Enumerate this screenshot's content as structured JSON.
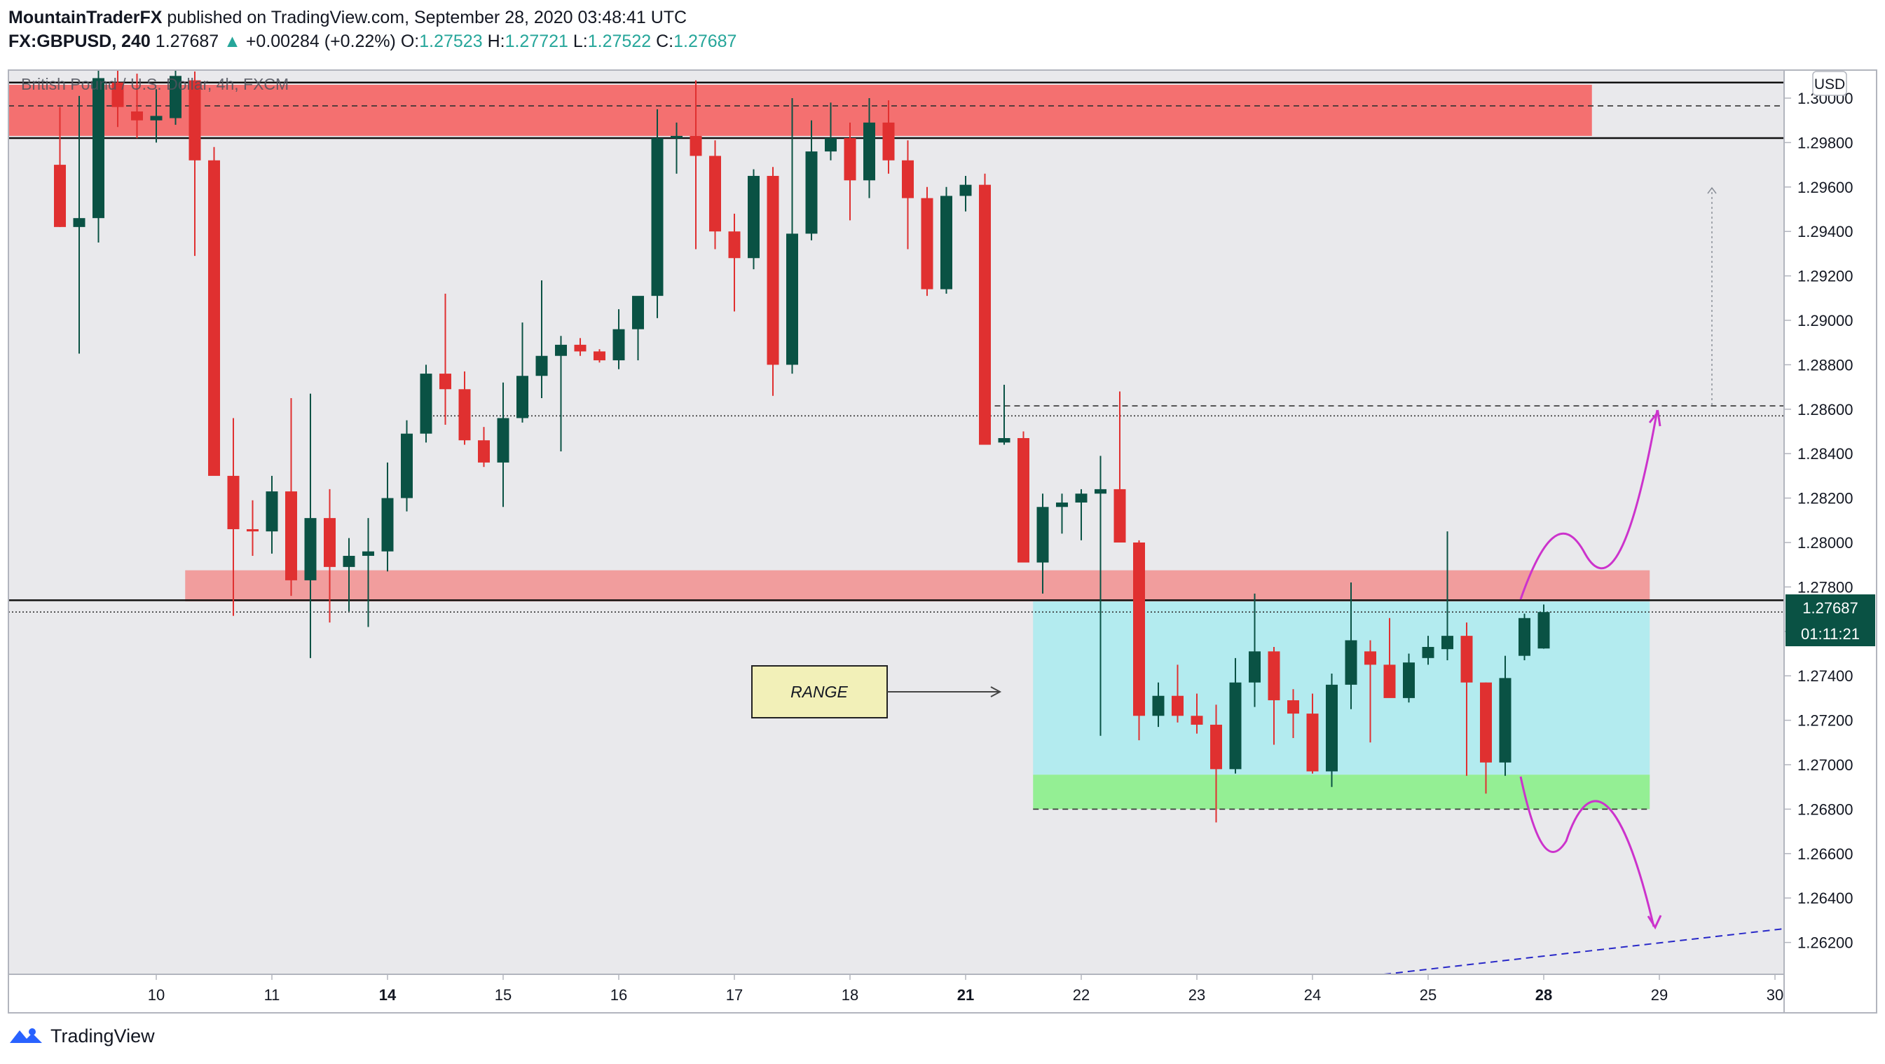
{
  "header": {
    "author": "MountainTraderFX",
    "published_text": "published on TradingView.com, September 28, 2020 03:48:41 UTC",
    "symbol": "FX:GBPUSD, 240",
    "last_price": "1.27687",
    "change_arrow": "▲",
    "change": "+0.00284 (+0.22%)",
    "o_label": "O:",
    "o_value": "1.27523",
    "h_label": "H:",
    "h_value": "1.27721",
    "l_label": "L:",
    "l_value": "1.27522",
    "c_label": "C:",
    "c_value": "1.27687"
  },
  "colors": {
    "bull": "#0a5244",
    "bear": "#e03030",
    "supply_zone": "#f47070",
    "support_zone": "#f19d9d",
    "range_box": "#b3ebef",
    "demand_zone": "#94ef94",
    "projection": "#cc33cc",
    "trendline": "#2828c8",
    "background": "#e9e9ec"
  },
  "chart_data": {
    "type": "candlestick",
    "title": "British Pound / U.S. Dollar, 4h, FXCM",
    "currency": "USD",
    "ylim": [
      1.2603,
      1.3022
    ],
    "y_ticks": [
      "1.30000",
      "1.29800",
      "1.29600",
      "1.29400",
      "1.29200",
      "1.29000",
      "1.28800",
      "1.28600",
      "1.28400",
      "1.28200",
      "1.28000",
      "1.27800",
      "1.27600",
      "1.27400",
      "1.27200",
      "1.27000",
      "1.26800",
      "1.26600",
      "1.26400",
      "1.26200"
    ],
    "x_ticks": [
      "10",
      "11",
      "14",
      "15",
      "16",
      "17",
      "18",
      "21",
      "22",
      "23",
      "24",
      "25",
      "28",
      "29",
      "30"
    ],
    "bold_x_ticks": [
      "14",
      "21",
      "28"
    ],
    "x_tick_index": [
      2.0,
      8.0,
      14.0,
      20.0,
      26.0,
      32.0,
      38.0,
      44.0,
      50.0,
      56.0,
      62.0,
      68.0,
      74.0,
      80.0,
      86.0
    ],
    "candles": [
      {
        "i": -3.0,
        "o": 1.297,
        "h": 1.2996,
        "l": 1.2942,
        "c": 1.2942
      },
      {
        "i": -2.0,
        "o": 1.2942,
        "h": 1.3001,
        "l": 1.2885,
        "c": 1.2946
      },
      {
        "i": -1.0,
        "o": 1.2946,
        "h": 1.3018,
        "l": 1.2935,
        "c": 1.3009
      },
      {
        "i": 0.0,
        "o": 1.3007,
        "h": 1.3014,
        "l": 1.2987,
        "c": 1.2996
      },
      {
        "i": 1.0,
        "o": 1.2994,
        "h": 1.3011,
        "l": 1.2982,
        "c": 1.299
      },
      {
        "i": 2.0,
        "o": 1.299,
        "h": 1.3004,
        "l": 1.298,
        "c": 1.2992
      },
      {
        "i": 3.0,
        "o": 1.2991,
        "h": 1.3016,
        "l": 1.2988,
        "c": 1.301
      },
      {
        "i": 4.0,
        "o": 1.3008,
        "h": 1.3012,
        "l": 1.2929,
        "c": 1.2972
      },
      {
        "i": 5.0,
        "o": 1.2972,
        "h": 1.2978,
        "l": 1.2832,
        "c": 1.283
      },
      {
        "i": 6.0,
        "o": 1.283,
        "h": 1.2856,
        "l": 1.2767,
        "c": 1.2806
      },
      {
        "i": 7.0,
        "o": 1.2806,
        "h": 1.2819,
        "l": 1.2794,
        "c": 1.2805
      },
      {
        "i": 8.0,
        "o": 1.2805,
        "h": 1.283,
        "l": 1.2795,
        "c": 1.2823
      },
      {
        "i": 9.0,
        "o": 1.2823,
        "h": 1.2865,
        "l": 1.2776,
        "c": 1.2783
      },
      {
        "i": 10.0,
        "o": 1.2783,
        "h": 1.2867,
        "l": 1.2748,
        "c": 1.2811
      },
      {
        "i": 11.0,
        "o": 1.2811,
        "h": 1.2824,
        "l": 1.2764,
        "c": 1.2789
      },
      {
        "i": 12.0,
        "o": 1.2789,
        "h": 1.2802,
        "l": 1.2769,
        "c": 1.2794
      },
      {
        "i": 13.0,
        "o": 1.2794,
        "h": 1.2811,
        "l": 1.2762,
        "c": 1.2796
      },
      {
        "i": 14.0,
        "o": 1.2796,
        "h": 1.2836,
        "l": 1.2787,
        "c": 1.282
      },
      {
        "i": 15.0,
        "o": 1.282,
        "h": 1.2855,
        "l": 1.2814,
        "c": 1.2849
      },
      {
        "i": 16.0,
        "o": 1.2849,
        "h": 1.288,
        "l": 1.2845,
        "c": 1.2876
      },
      {
        "i": 17.0,
        "o": 1.2876,
        "h": 1.2912,
        "l": 1.2853,
        "c": 1.2869
      },
      {
        "i": 18.0,
        "o": 1.2869,
        "h": 1.2877,
        "l": 1.2844,
        "c": 1.2846
      },
      {
        "i": 19.0,
        "o": 1.2846,
        "h": 1.2852,
        "l": 1.2834,
        "c": 1.2836
      },
      {
        "i": 20.0,
        "o": 1.2836,
        "h": 1.2872,
        "l": 1.2816,
        "c": 1.2856
      },
      {
        "i": 21.0,
        "o": 1.2856,
        "h": 1.2899,
        "l": 1.2854,
        "c": 1.2875
      },
      {
        "i": 22.0,
        "o": 1.2875,
        "h": 1.2918,
        "l": 1.2865,
        "c": 1.2884
      },
      {
        "i": 23.0,
        "o": 1.2884,
        "h": 1.2893,
        "l": 1.2841,
        "c": 1.2889
      },
      {
        "i": 24.0,
        "o": 1.2889,
        "h": 1.2892,
        "l": 1.2884,
        "c": 1.2886
      },
      {
        "i": 25.0,
        "o": 1.2886,
        "h": 1.2887,
        "l": 1.2881,
        "c": 1.2882
      },
      {
        "i": 26.0,
        "o": 1.2882,
        "h": 1.2905,
        "l": 1.2878,
        "c": 1.2896
      },
      {
        "i": 27.0,
        "o": 1.2896,
        "h": 1.291,
        "l": 1.2882,
        "c": 1.2911
      },
      {
        "i": 28.0,
        "o": 1.2911,
        "h": 1.2995,
        "l": 1.2901,
        "c": 1.2982
      },
      {
        "i": 29.0,
        "o": 1.2982,
        "h": 1.2989,
        "l": 1.2966,
        "c": 1.2983
      },
      {
        "i": 30.0,
        "o": 1.2983,
        "h": 1.3008,
        "l": 1.2932,
        "c": 1.2974
      },
      {
        "i": 31.0,
        "o": 1.2974,
        "h": 1.2981,
        "l": 1.2932,
        "c": 1.294
      },
      {
        "i": 32.0,
        "o": 1.294,
        "h": 1.2948,
        "l": 1.2904,
        "c": 1.2928
      },
      {
        "i": 33.0,
        "o": 1.2928,
        "h": 1.2968,
        "l": 1.2923,
        "c": 1.2965
      },
      {
        "i": 34.0,
        "o": 1.2965,
        "h": 1.2969,
        "l": 1.2866,
        "c": 1.288
      },
      {
        "i": 35.0,
        "o": 1.288,
        "h": 1.3,
        "l": 1.2876,
        "c": 1.2939
      },
      {
        "i": 36.0,
        "o": 1.2939,
        "h": 1.299,
        "l": 1.2936,
        "c": 1.2976
      },
      {
        "i": 37.0,
        "o": 1.2976,
        "h": 1.2998,
        "l": 1.2972,
        "c": 1.2982
      },
      {
        "i": 38.0,
        "o": 1.2982,
        "h": 1.2989,
        "l": 1.2945,
        "c": 1.2963
      },
      {
        "i": 39.0,
        "o": 1.2963,
        "h": 1.3,
        "l": 1.2955,
        "c": 1.2989
      },
      {
        "i": 40.0,
        "o": 1.2989,
        "h": 1.2999,
        "l": 1.2966,
        "c": 1.2972
      },
      {
        "i": 41.0,
        "o": 1.2972,
        "h": 1.2981,
        "l": 1.2932,
        "c": 1.2955
      },
      {
        "i": 42.0,
        "o": 1.2955,
        "h": 1.296,
        "l": 1.2911,
        "c": 1.2914
      },
      {
        "i": 43.0,
        "o": 1.2914,
        "h": 1.296,
        "l": 1.2912,
        "c": 1.2956
      },
      {
        "i": 44.0,
        "o": 1.2956,
        "h": 1.2965,
        "l": 1.2949,
        "c": 1.2961
      },
      {
        "i": 45.0,
        "o": 1.2961,
        "h": 1.2966,
        "l": 1.2844,
        "c": 1.2844
      },
      {
        "i": 46.0,
        "o": 1.2845,
        "h": 1.2871,
        "l": 1.2844,
        "c": 1.2847
      },
      {
        "i": 47.0,
        "o": 1.2847,
        "h": 1.285,
        "l": 1.2791,
        "c": 1.2791
      },
      {
        "i": 48.0,
        "o": 1.2791,
        "h": 1.2822,
        "l": 1.2777,
        "c": 1.2816
      },
      {
        "i": 49.0,
        "o": 1.2816,
        "h": 1.2822,
        "l": 1.2804,
        "c": 1.2818
      },
      {
        "i": 50.0,
        "o": 1.2818,
        "h": 1.2824,
        "l": 1.2801,
        "c": 1.2822
      },
      {
        "i": 51.0,
        "o": 1.2822,
        "h": 1.2839,
        "l": 1.2713,
        "c": 1.2824
      },
      {
        "i": 52.0,
        "o": 1.2824,
        "h": 1.2868,
        "l": 1.2801,
        "c": 1.28
      },
      {
        "i": 53.0,
        "o": 1.28,
        "h": 1.2801,
        "l": 1.2711,
        "c": 1.2722
      },
      {
        "i": 54.0,
        "o": 1.2722,
        "h": 1.2737,
        "l": 1.2717,
        "c": 1.2731
      },
      {
        "i": 55.0,
        "o": 1.2731,
        "h": 1.2745,
        "l": 1.2719,
        "c": 1.2722
      },
      {
        "i": 56.0,
        "o": 1.2722,
        "h": 1.2732,
        "l": 1.2714,
        "c": 1.2718
      },
      {
        "i": 57.0,
        "o": 1.2718,
        "h": 1.2727,
        "l": 1.2674,
        "c": 1.2698
      },
      {
        "i": 58.0,
        "o": 1.2698,
        "h": 1.2748,
        "l": 1.2696,
        "c": 1.2737
      },
      {
        "i": 59.0,
        "o": 1.2737,
        "h": 1.2777,
        "l": 1.2726,
        "c": 1.2751
      },
      {
        "i": 60.0,
        "o": 1.2751,
        "h": 1.2753,
        "l": 1.2709,
        "c": 1.2729
      },
      {
        "i": 61.0,
        "o": 1.2729,
        "h": 1.2734,
        "l": 1.2712,
        "c": 1.2723
      },
      {
        "i": 62.0,
        "o": 1.2723,
        "h": 1.2732,
        "l": 1.2696,
        "c": 1.2697
      },
      {
        "i": 63.0,
        "o": 1.2697,
        "h": 1.2741,
        "l": 1.269,
        "c": 1.2736
      },
      {
        "i": 64.0,
        "o": 1.2736,
        "h": 1.2782,
        "l": 1.2725,
        "c": 1.2756
      },
      {
        "i": 65.0,
        "o": 1.2751,
        "h": 1.2756,
        "l": 1.271,
        "c": 1.2745
      },
      {
        "i": 66.0,
        "o": 1.2745,
        "h": 1.2766,
        "l": 1.2732,
        "c": 1.273
      },
      {
        "i": 67.0,
        "o": 1.273,
        "h": 1.275,
        "l": 1.2728,
        "c": 1.2746
      },
      {
        "i": 68.0,
        "o": 1.2748,
        "h": 1.2758,
        "l": 1.2745,
        "c": 1.2753
      },
      {
        "i": 69.0,
        "o": 1.2752,
        "h": 1.2805,
        "l": 1.2747,
        "c": 1.2758
      },
      {
        "i": 70.0,
        "o": 1.2758,
        "h": 1.2764,
        "l": 1.2695,
        "c": 1.2737
      },
      {
        "i": 71.0,
        "o": 1.2737,
        "h": 1.2737,
        "l": 1.2687,
        "c": 1.2701
      },
      {
        "i": 72.0,
        "o": 1.2701,
        "h": 1.2749,
        "l": 1.2695,
        "c": 1.2739
      },
      {
        "i": 73.0,
        "o": 1.2749,
        "h": 1.2768,
        "l": 1.2747,
        "c": 1.2766
      },
      {
        "i": 74.0,
        "o": 1.27523,
        "h": 1.27721,
        "l": 1.27522,
        "c": 1.27687
      }
    ],
    "zones": [
      {
        "name": "supply",
        "from_i": -6.0,
        "to_i": 76.5,
        "y_top": 1.3006,
        "y_bottom": 1.2983
      },
      {
        "name": "support",
        "from_i": 3.5,
        "to_i": 79.5,
        "y_top": 1.27875,
        "y_bottom": 1.27735
      },
      {
        "name": "range",
        "from_i": 47.5,
        "to_i": 79.5,
        "y_top": 1.27735,
        "y_bottom": 1.26955
      },
      {
        "name": "demand",
        "from_i": 47.5,
        "to_i": 79.5,
        "y_top": 1.26955,
        "y_bottom": 1.268
      }
    ],
    "levels": [
      {
        "y": 1.3007,
        "style": "solid",
        "from_i": -6.0,
        "to_i": 90.5
      },
      {
        "y": 1.2982,
        "style": "solid",
        "from_i": -6.0,
        "to_i": 90.5
      },
      {
        "y": 1.29965,
        "style": "dashed",
        "from_i": -6.0,
        "to_i": 89.5
      },
      {
        "y": 1.2774,
        "style": "solid",
        "from_i": -6.0,
        "to_i": 90.5
      },
      {
        "y": 1.27687,
        "style": "dotted",
        "from_i": -6.0,
        "to_i": 90.5
      },
      {
        "y": 1.28615,
        "style": "dashed",
        "from_i": 45.0,
        "to_i": 89.5
      },
      {
        "y": 1.2857,
        "style": "dotted",
        "from_i": 16.0,
        "to_i": 89.5
      },
      {
        "y": 1.268,
        "style": "dashed",
        "from_i": 47.5,
        "to_i": 79.5
      }
    ],
    "range_label": "RANGE",
    "last_price_label": "1.27687",
    "countdown_label": "01:11:21"
  }
}
